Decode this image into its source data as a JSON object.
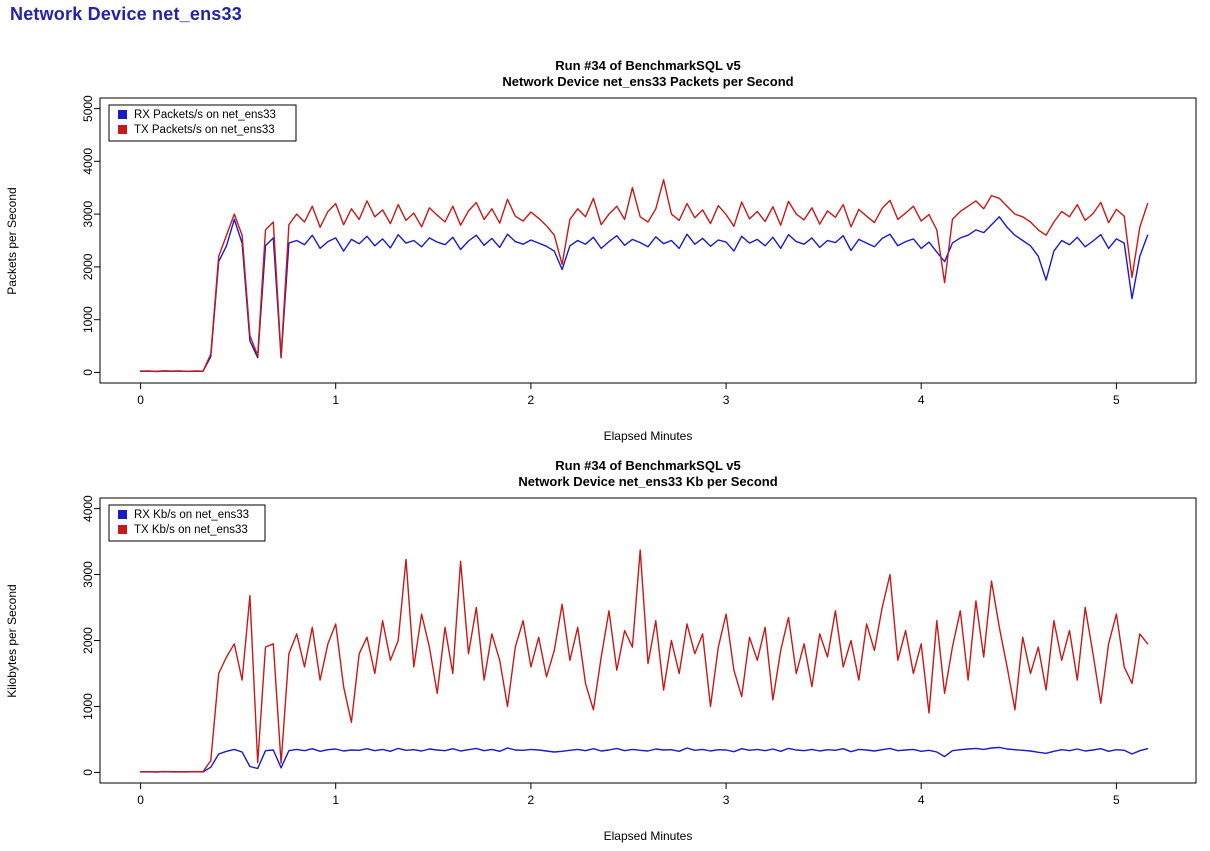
{
  "page": {
    "title": "Network Device net_ens33",
    "title_color": "#2222AA",
    "background": "#FFFFFF"
  },
  "chart_data": [
    {
      "type": "line",
      "title": "Run #34 of BenchmarkSQL v5",
      "subtitle": "Network Device net_ens33 Packets per Second",
      "xlabel": "Elapsed Minutes",
      "ylabel": "Packets per Second",
      "xlim": [
        0,
        5.2
      ],
      "ylim": [
        0,
        5000
      ],
      "xticks": [
        0,
        1,
        2,
        3,
        4,
        5
      ],
      "yticks": [
        0,
        1000,
        2000,
        3000,
        4000,
        5000
      ],
      "grid": false,
      "legend_position": "topleft",
      "x_start": 0,
      "x_step": 0.04,
      "series": [
        {
          "name": "RX Packets/s on net_ens33",
          "color": "#1A1AC8",
          "values": [
            20,
            25,
            18,
            28,
            22,
            26,
            19,
            24,
            21,
            300,
            2100,
            2400,
            2900,
            2450,
            600,
            280,
            2400,
            2550,
            280,
            2450,
            2500,
            2420,
            2600,
            2350,
            2480,
            2550,
            2300,
            2520,
            2440,
            2580,
            2400,
            2530,
            2360,
            2610,
            2450,
            2500,
            2380,
            2550,
            2470,
            2420,
            2560,
            2330,
            2490,
            2600,
            2410,
            2540,
            2370,
            2620,
            2480,
            2430,
            2510,
            2450,
            2390,
            2300,
            1950,
            2400,
            2500,
            2430,
            2560,
            2350,
            2480,
            2590,
            2410,
            2520,
            2460,
            2380,
            2570,
            2440,
            2500,
            2350,
            2620,
            2430,
            2540,
            2390,
            2510,
            2470,
            2300,
            2580,
            2450,
            2520,
            2400,
            2560,
            2350,
            2610,
            2480,
            2430,
            2550,
            2370,
            2500,
            2460,
            2590,
            2310,
            2520,
            2450,
            2380,
            2540,
            2620,
            2400,
            2480,
            2530,
            2350,
            2470,
            2280,
            2100,
            2450,
            2550,
            2600,
            2700,
            2650,
            2800,
            2950,
            2750,
            2600,
            2500,
            2400,
            2200,
            1750,
            2300,
            2500,
            2420,
            2560,
            2380,
            2490,
            2610,
            2350,
            2530,
            2450,
            1400,
            2200,
            2600
          ]
        },
        {
          "name": "TX Packets/s on net_ens33",
          "color": "#C41A1A",
          "values": [
            25,
            30,
            22,
            32,
            26,
            28,
            21,
            29,
            24,
            350,
            2200,
            2600,
            3000,
            2600,
            700,
            320,
            2700,
            2850,
            300,
            2800,
            3000,
            2850,
            3150,
            2750,
            3050,
            3200,
            2800,
            3100,
            2900,
            3250,
            2950,
            3080,
            2820,
            3180,
            2880,
            3020,
            2760,
            3120,
            2980,
            2850,
            3150,
            2790,
            3060,
            3220,
            2900,
            3100,
            2830,
            3280,
            2960,
            2870,
            3040,
            2920,
            2780,
            2600,
            2050,
            2900,
            3100,
            2950,
            3300,
            2800,
            3000,
            3150,
            2900,
            3500,
            2950,
            2850,
            3100,
            3650,
            3000,
            2880,
            3200,
            2930,
            3080,
            2820,
            3160,
            2990,
            2770,
            3230,
            2910,
            3050,
            2860,
            3140,
            2790,
            3240,
            3000,
            2890,
            3120,
            2810,
            3060,
            2940,
            3180,
            2760,
            3090,
            2960,
            2840,
            3110,
            3260,
            2900,
            3020,
            3150,
            2870,
            2990,
            2700,
            1700,
            2900,
            3050,
            3150,
            3250,
            3100,
            3350,
            3300,
            3150,
            3000,
            2950,
            2850,
            2700,
            2600,
            2850,
            3050,
            2950,
            3180,
            2880,
            3010,
            3220,
            2840,
            3090,
            2960,
            1800,
            2750,
            3200
          ]
        }
      ]
    },
    {
      "type": "line",
      "title": "Run #34 of BenchmarkSQL v5",
      "subtitle": "Network Device net_ens33 Kb per Second",
      "xlabel": "Elapsed Minutes",
      "ylabel": "Kilobytes per Second",
      "xlim": [
        0,
        5.2
      ],
      "ylim": [
        0,
        4000
      ],
      "xticks": [
        0,
        1,
        2,
        3,
        4,
        5
      ],
      "yticks": [
        0,
        1000,
        2000,
        3000,
        4000
      ],
      "grid": false,
      "legend_position": "topleft",
      "x_start": 0,
      "x_step": 0.04,
      "series": [
        {
          "name": "RX Kb/s on net_ens33",
          "color": "#1A1AC8",
          "values": [
            8,
            10,
            7,
            11,
            9,
            10,
            8,
            11,
            9,
            80,
            280,
            320,
            350,
            310,
            90,
            60,
            330,
            340,
            70,
            330,
            350,
            330,
            360,
            320,
            345,
            355,
            325,
            340,
            335,
            360,
            330,
            350,
            320,
            365,
            335,
            345,
            325,
            355,
            340,
            330,
            360,
            325,
            345,
            365,
            330,
            350,
            320,
            370,
            340,
            335,
            350,
            340,
            325,
            310,
            320,
            335,
            350,
            330,
            360,
            325,
            340,
            365,
            330,
            350,
            335,
            325,
            355,
            340,
            345,
            320,
            370,
            335,
            350,
            325,
            345,
            340,
            315,
            360,
            335,
            350,
            330,
            355,
            320,
            365,
            340,
            330,
            350,
            325,
            345,
            335,
            360,
            315,
            350,
            340,
            325,
            345,
            365,
            330,
            340,
            350,
            320,
            335,
            310,
            240,
            330,
            345,
            355,
            365,
            350,
            370,
            380,
            355,
            345,
            335,
            325,
            305,
            290,
            320,
            345,
            330,
            355,
            325,
            340,
            360,
            320,
            345,
            335,
            280,
            330,
            360
          ]
        },
        {
          "name": "TX Kb/s on net_ens33",
          "color": "#C41A1A",
          "values": [
            10,
            12,
            9,
            13,
            11,
            12,
            10,
            13,
            11,
            180,
            1500,
            1750,
            1950,
            1400,
            2680,
            150,
            1900,
            1950,
            140,
            1800,
            2100,
            1600,
            2200,
            1400,
            1950,
            2250,
            1300,
            760,
            1800,
            2050,
            1500,
            2300,
            1700,
            2000,
            3230,
            1600,
            2400,
            1900,
            1200,
            2200,
            1500,
            3200,
            1800,
            2500,
            1400,
            2100,
            1700,
            1000,
            1900,
            2300,
            1600,
            2050,
            1450,
            1850,
            2550,
            1700,
            2200,
            1350,
            950,
            1750,
            2450,
            1550,
            2150,
            1900,
            3370,
            1650,
            2300,
            1250,
            2000,
            1500,
            2250,
            1800,
            2100,
            1000,
            1900,
            2400,
            1550,
            1150,
            2050,
            1700,
            2200,
            1100,
            1850,
            2350,
            1500,
            1950,
            1300,
            2100,
            1750,
            2450,
            1600,
            2000,
            1400,
            2250,
            1850,
            2500,
            3000,
            1700,
            2150,
            1500,
            1950,
            900,
            2300,
            1200,
            1900,
            2450,
            1400,
            2600,
            1750,
            2900,
            2200,
            1600,
            950,
            2050,
            1500,
            1900,
            1250,
            2300,
            1700,
            2150,
            1400,
            2500,
            1800,
            1050,
            1950,
            2400,
            1600,
            1350,
            2100,
            1950
          ]
        }
      ]
    }
  ]
}
